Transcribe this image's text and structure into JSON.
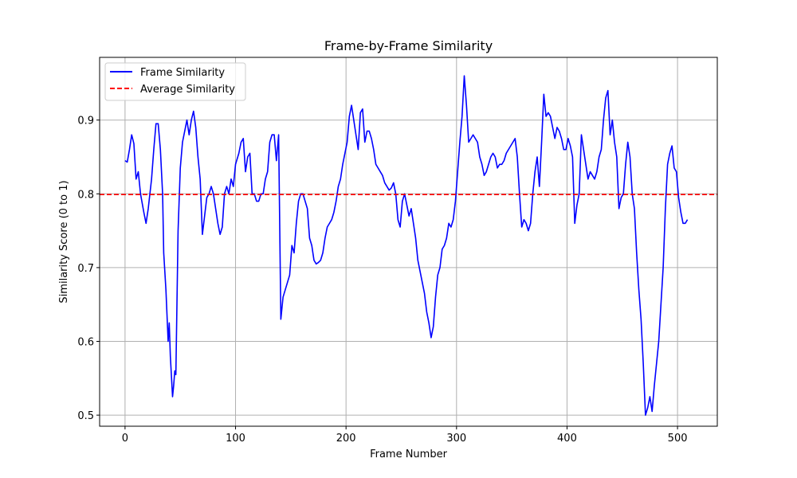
{
  "chart_data": {
    "type": "line",
    "title": "Frame-by-Frame Similarity",
    "xlabel": "Frame Number",
    "ylabel": "Similarity Score (0 to 1)",
    "xlim": [
      -23,
      536
    ],
    "ylim": [
      0.485,
      0.985
    ],
    "xticks": [
      0,
      100,
      200,
      300,
      400,
      500
    ],
    "xtick_labels": [
      "0",
      "100",
      "200",
      "300",
      "400",
      "500"
    ],
    "yticks": [
      0.5,
      0.6,
      0.7,
      0.8,
      0.9
    ],
    "ytick_labels": [
      "0.5",
      "0.6",
      "0.7",
      "0.8",
      "0.9"
    ],
    "grid": true,
    "legend_position": "top-left",
    "series": [
      {
        "name": "Frame Similarity",
        "color": "#0000ff",
        "style": "solid",
        "points": [
          [
            0,
            0.845
          ],
          [
            2,
            0.843
          ],
          [
            4,
            0.86
          ],
          [
            6,
            0.88
          ],
          [
            8,
            0.868
          ],
          [
            10,
            0.82
          ],
          [
            12,
            0.83
          ],
          [
            14,
            0.8
          ],
          [
            17,
            0.775
          ],
          [
            19,
            0.76
          ],
          [
            21,
            0.78
          ],
          [
            24,
            0.82
          ],
          [
            26,
            0.86
          ],
          [
            28,
            0.895
          ],
          [
            30,
            0.895
          ],
          [
            32,
            0.86
          ],
          [
            34,
            0.8
          ],
          [
            35,
            0.72
          ],
          [
            37,
            0.67
          ],
          [
            39,
            0.6
          ],
          [
            40,
            0.625
          ],
          [
            41,
            0.58
          ],
          [
            43,
            0.525
          ],
          [
            44,
            0.54
          ],
          [
            45,
            0.56
          ],
          [
            46,
            0.555
          ],
          [
            48,
            0.75
          ],
          [
            50,
            0.835
          ],
          [
            52,
            0.87
          ],
          [
            54,
            0.885
          ],
          [
            56,
            0.9
          ],
          [
            58,
            0.88
          ],
          [
            60,
            0.9
          ],
          [
            62,
            0.912
          ],
          [
            64,
            0.89
          ],
          [
            66,
            0.85
          ],
          [
            68,
            0.82
          ],
          [
            70,
            0.745
          ],
          [
            72,
            0.77
          ],
          [
            74,
            0.795
          ],
          [
            76,
            0.8
          ],
          [
            78,
            0.81
          ],
          [
            80,
            0.8
          ],
          [
            82,
            0.78
          ],
          [
            84,
            0.76
          ],
          [
            86,
            0.745
          ],
          [
            88,
            0.755
          ],
          [
            90,
            0.8
          ],
          [
            92,
            0.81
          ],
          [
            94,
            0.8
          ],
          [
            96,
            0.82
          ],
          [
            98,
            0.81
          ],
          [
            100,
            0.84
          ],
          [
            103,
            0.855
          ],
          [
            105,
            0.87
          ],
          [
            107,
            0.875
          ],
          [
            109,
            0.83
          ],
          [
            111,
            0.85
          ],
          [
            113,
            0.855
          ],
          [
            115,
            0.8
          ],
          [
            117,
            0.8
          ],
          [
            119,
            0.79
          ],
          [
            121,
            0.79
          ],
          [
            123,
            0.8
          ],
          [
            125,
            0.8
          ],
          [
            127,
            0.82
          ],
          [
            129,
            0.83
          ],
          [
            131,
            0.87
          ],
          [
            133,
            0.88
          ],
          [
            135,
            0.88
          ],
          [
            137,
            0.845
          ],
          [
            139,
            0.88
          ],
          [
            141,
            0.63
          ],
          [
            143,
            0.66
          ],
          [
            145,
            0.67
          ],
          [
            147,
            0.68
          ],
          [
            149,
            0.69
          ],
          [
            151,
            0.73
          ],
          [
            153,
            0.72
          ],
          [
            155,
            0.76
          ],
          [
            157,
            0.79
          ],
          [
            159,
            0.8
          ],
          [
            161,
            0.8
          ],
          [
            163,
            0.79
          ],
          [
            165,
            0.78
          ],
          [
            167,
            0.74
          ],
          [
            169,
            0.73
          ],
          [
            171,
            0.71
          ],
          [
            173,
            0.705
          ],
          [
            175,
            0.707
          ],
          [
            177,
            0.71
          ],
          [
            179,
            0.72
          ],
          [
            181,
            0.74
          ],
          [
            183,
            0.755
          ],
          [
            185,
            0.76
          ],
          [
            187,
            0.765
          ],
          [
            189,
            0.775
          ],
          [
            191,
            0.79
          ],
          [
            193,
            0.81
          ],
          [
            195,
            0.82
          ],
          [
            197,
            0.84
          ],
          [
            199,
            0.855
          ],
          [
            201,
            0.87
          ],
          [
            203,
            0.905
          ],
          [
            205,
            0.92
          ],
          [
            207,
            0.9
          ],
          [
            209,
            0.88
          ],
          [
            211,
            0.86
          ],
          [
            213,
            0.91
          ],
          [
            215,
            0.915
          ],
          [
            217,
            0.87
          ],
          [
            219,
            0.885
          ],
          [
            221,
            0.885
          ],
          [
            223,
            0.875
          ],
          [
            225,
            0.86
          ],
          [
            227,
            0.84
          ],
          [
            229,
            0.835
          ],
          [
            231,
            0.83
          ],
          [
            233,
            0.825
          ],
          [
            235,
            0.815
          ],
          [
            237,
            0.81
          ],
          [
            239,
            0.805
          ],
          [
            241,
            0.808
          ],
          [
            243,
            0.815
          ],
          [
            245,
            0.8
          ],
          [
            247,
            0.765
          ],
          [
            249,
            0.755
          ],
          [
            251,
            0.79
          ],
          [
            253,
            0.8
          ],
          [
            255,
            0.785
          ],
          [
            257,
            0.77
          ],
          [
            259,
            0.78
          ],
          [
            261,
            0.76
          ],
          [
            263,
            0.74
          ],
          [
            265,
            0.71
          ],
          [
            267,
            0.695
          ],
          [
            269,
            0.68
          ],
          [
            271,
            0.665
          ],
          [
            273,
            0.64
          ],
          [
            275,
            0.625
          ],
          [
            277,
            0.605
          ],
          [
            279,
            0.62
          ],
          [
            281,
            0.66
          ],
          [
            283,
            0.69
          ],
          [
            285,
            0.7
          ],
          [
            287,
            0.725
          ],
          [
            289,
            0.73
          ],
          [
            291,
            0.74
          ],
          [
            293,
            0.76
          ],
          [
            295,
            0.755
          ],
          [
            297,
            0.765
          ],
          [
            299,
            0.79
          ],
          [
            301,
            0.83
          ],
          [
            303,
            0.87
          ],
          [
            305,
            0.905
          ],
          [
            307,
            0.96
          ],
          [
            309,
            0.92
          ],
          [
            311,
            0.87
          ],
          [
            313,
            0.875
          ],
          [
            315,
            0.88
          ],
          [
            317,
            0.875
          ],
          [
            319,
            0.87
          ],
          [
            321,
            0.85
          ],
          [
            323,
            0.84
          ],
          [
            325,
            0.825
          ],
          [
            327,
            0.83
          ],
          [
            329,
            0.84
          ],
          [
            331,
            0.85
          ],
          [
            333,
            0.855
          ],
          [
            335,
            0.85
          ],
          [
            337,
            0.835
          ],
          [
            339,
            0.84
          ],
          [
            341,
            0.84
          ],
          [
            343,
            0.845
          ],
          [
            345,
            0.855
          ],
          [
            347,
            0.86
          ],
          [
            349,
            0.865
          ],
          [
            351,
            0.87
          ],
          [
            353,
            0.875
          ],
          [
            355,
            0.85
          ],
          [
            357,
            0.8
          ],
          [
            359,
            0.755
          ],
          [
            361,
            0.765
          ],
          [
            363,
            0.76
          ],
          [
            365,
            0.75
          ],
          [
            367,
            0.76
          ],
          [
            369,
            0.8
          ],
          [
            371,
            0.83
          ],
          [
            373,
            0.85
          ],
          [
            375,
            0.81
          ],
          [
            377,
            0.87
          ],
          [
            379,
            0.935
          ],
          [
            381,
            0.905
          ],
          [
            383,
            0.91
          ],
          [
            385,
            0.905
          ],
          [
            387,
            0.89
          ],
          [
            389,
            0.875
          ],
          [
            391,
            0.89
          ],
          [
            393,
            0.885
          ],
          [
            395,
            0.875
          ],
          [
            397,
            0.86
          ],
          [
            399,
            0.86
          ],
          [
            401,
            0.875
          ],
          [
            403,
            0.865
          ],
          [
            405,
            0.85
          ],
          [
            407,
            0.76
          ],
          [
            409,
            0.785
          ],
          [
            411,
            0.8
          ],
          [
            413,
            0.88
          ],
          [
            415,
            0.86
          ],
          [
            417,
            0.84
          ],
          [
            419,
            0.82
          ],
          [
            421,
            0.83
          ],
          [
            423,
            0.825
          ],
          [
            425,
            0.82
          ],
          [
            427,
            0.83
          ],
          [
            429,
            0.85
          ],
          [
            431,
            0.86
          ],
          [
            433,
            0.9
          ],
          [
            435,
            0.93
          ],
          [
            437,
            0.94
          ],
          [
            439,
            0.88
          ],
          [
            441,
            0.9
          ],
          [
            443,
            0.87
          ],
          [
            445,
            0.85
          ],
          [
            447,
            0.78
          ],
          [
            449,
            0.795
          ],
          [
            451,
            0.8
          ],
          [
            453,
            0.84
          ],
          [
            455,
            0.87
          ],
          [
            457,
            0.85
          ],
          [
            459,
            0.8
          ],
          [
            461,
            0.78
          ],
          [
            463,
            0.72
          ],
          [
            465,
            0.67
          ],
          [
            467,
            0.63
          ],
          [
            469,
            0.57
          ],
          [
            471,
            0.5
          ],
          [
            473,
            0.51
          ],
          [
            475,
            0.525
          ],
          [
            477,
            0.505
          ],
          [
            479,
            0.54
          ],
          [
            481,
            0.57
          ],
          [
            483,
            0.6
          ],
          [
            485,
            0.65
          ],
          [
            487,
            0.7
          ],
          [
            489,
            0.78
          ],
          [
            491,
            0.84
          ],
          [
            493,
            0.855
          ],
          [
            495,
            0.865
          ],
          [
            497,
            0.835
          ],
          [
            499,
            0.83
          ],
          [
            501,
            0.795
          ],
          [
            503,
            0.775
          ],
          [
            505,
            0.76
          ],
          [
            507,
            0.76
          ],
          [
            509,
            0.765
          ]
        ]
      },
      {
        "name": "Average Similarity",
        "color": "#ff0000",
        "style": "dashed",
        "y": 0.799
      }
    ]
  }
}
